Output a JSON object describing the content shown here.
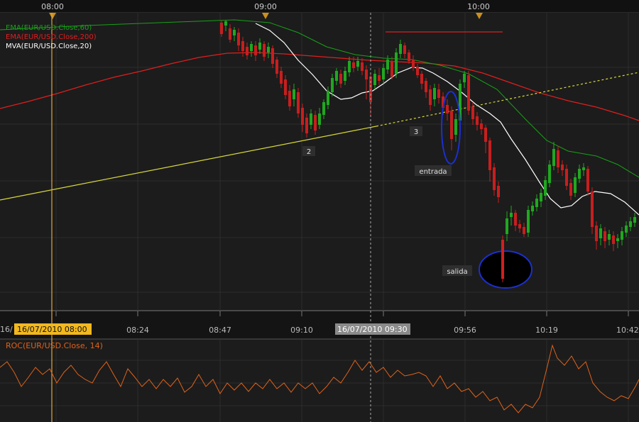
{
  "top_axis": {
    "ticks": [
      "08:00",
      "09:00",
      "10:00"
    ]
  },
  "legend": [
    {
      "label": "EMA(EUR/USD.Close,60)",
      "color": "#18a018"
    },
    {
      "label": "EMA(EUR/USD.Close,200)",
      "color": "#e01e1e"
    },
    {
      "label": "MVA(EUR/USD.Close,20)",
      "color": "#ffffff"
    }
  ],
  "time_axis": {
    "left_clip": "16/",
    "highlight_label": "16/07/2010 08:00",
    "cursor_label": "16/07/2010 09:30",
    "ticks": [
      "08:24",
      "08:47",
      "09:10",
      "09:56",
      "10:19",
      "10:42"
    ]
  },
  "annotations": {
    "point2": "2",
    "point3": "3",
    "entry": "entrada",
    "exit": "salida"
  },
  "roc_panel": {
    "label": "ROC(EUR/USD.Close, 14)",
    "color": "#e0621a"
  },
  "chart_data": {
    "type": "line",
    "instrument": "EUR/USD",
    "x_range": [
      "07:50",
      "10:42"
    ],
    "series": [
      {
        "name": "EMA(EUR/USD.Close,200)",
        "color": "#e01e1e",
        "values": [
          0.55,
          0.52,
          0.48,
          0.44,
          0.4,
          0.36,
          0.32,
          0.29,
          0.27,
          0.26,
          0.265,
          0.27,
          0.29,
          0.31,
          0.33,
          0.34,
          0.35,
          0.355,
          0.36,
          0.37,
          0.4,
          0.45,
          0.52,
          0.6,
          0.66,
          0.7,
          0.73,
          0.75
        ]
      },
      {
        "name": "EMA(EUR/USD.Close,60)",
        "color": "#18a018",
        "values": [
          null,
          null,
          null,
          null,
          null,
          null,
          null,
          null,
          null,
          null,
          null,
          null,
          null,
          0.35,
          0.38,
          0.36,
          0.32,
          0.33,
          0.33,
          0.42,
          0.52,
          0.64,
          0.8,
          0.94,
          1.04,
          1.1,
          1.18,
          1.3
        ]
      },
      {
        "name": "MVA(EUR/USD.Close,20)",
        "color": "#ffffff",
        "values": [
          null,
          null,
          null,
          null,
          null,
          null,
          null,
          null,
          null,
          null,
          null,
          null,
          0.0,
          0.3,
          0.7,
          1.0,
          0.9,
          0.6,
          0.1,
          0.4,
          0.8,
          1.4,
          2.0,
          2.4,
          2.3,
          2.1,
          2.2,
          2.5
        ]
      }
    ]
  }
}
